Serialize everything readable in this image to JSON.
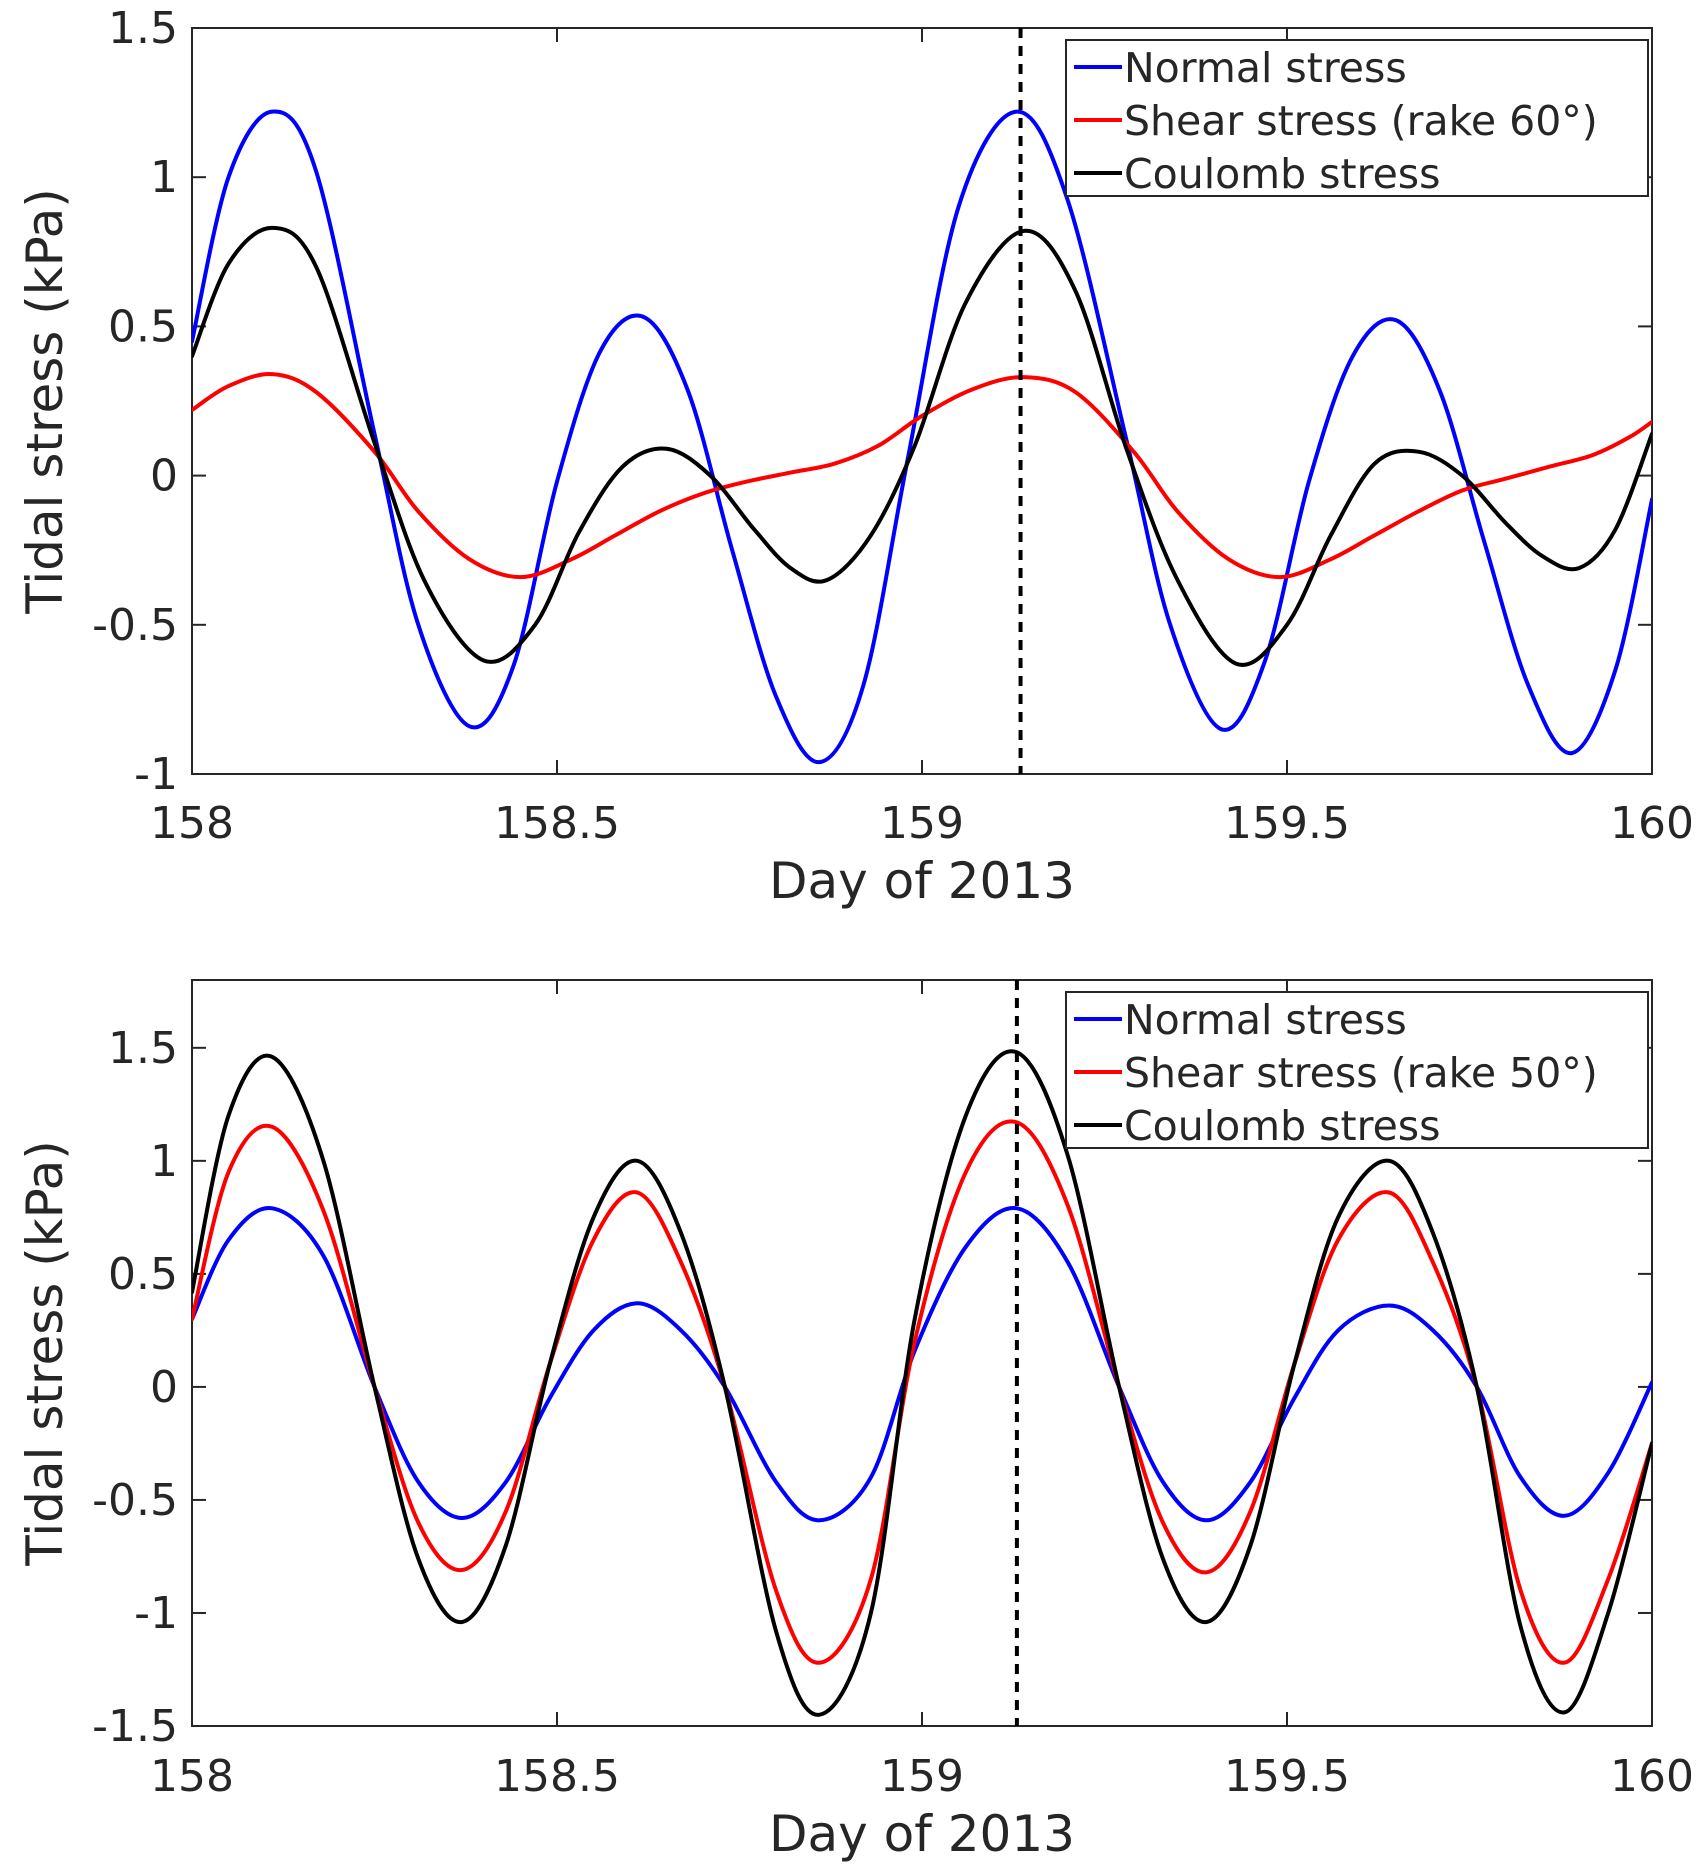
{
  "chart_data": [
    {
      "type": "line",
      "title": "",
      "xlabel": "Day of 2013",
      "ylabel": "Tidal stress (kPa)",
      "xlim": [
        158,
        160
      ],
      "ylim": [
        -1,
        1.5
      ],
      "xticks": [
        158,
        158.5,
        159,
        159.5,
        160
      ],
      "xtick_labels": [
        "158",
        "158.5",
        "159",
        "159.5",
        "160"
      ],
      "yticks": [
        -1,
        -0.5,
        0,
        0.5,
        1,
        1.5
      ],
      "ytick_labels": [
        "-1",
        "-0.5",
        "0",
        "0.5",
        "1",
        "1.5"
      ],
      "grid": false,
      "legend_position": "top-right",
      "vline": 159.135,
      "series": [
        {
          "name": "Normal stress",
          "color": "#0000ff",
          "x": [
            158.0,
            158.05,
            158.11,
            158.17,
            158.25,
            158.31,
            158.38,
            158.44,
            158.5,
            158.56,
            158.62,
            158.68,
            158.74,
            158.8,
            158.86,
            158.92,
            158.98,
            159.05,
            159.13,
            159.2,
            159.28,
            159.34,
            159.41,
            159.47,
            159.53,
            159.59,
            159.65,
            159.71,
            159.77,
            159.83,
            159.89,
            159.95,
            160.0
          ],
          "y": [
            0.45,
            1.0,
            1.22,
            1.02,
            0.14,
            -0.5,
            -0.84,
            -0.64,
            -0.02,
            0.42,
            0.53,
            0.28,
            -0.25,
            -0.74,
            -0.96,
            -0.7,
            0.05,
            0.9,
            1.22,
            0.92,
            0.12,
            -0.5,
            -0.85,
            -0.62,
            -0.02,
            0.4,
            0.52,
            0.28,
            -0.22,
            -0.7,
            -0.93,
            -0.65,
            -0.08
          ]
        },
        {
          "name": "Shear stress (rake 60°)",
          "color": "#ff0000",
          "x": [
            158.0,
            158.05,
            158.11,
            158.17,
            158.25,
            158.31,
            158.38,
            158.45,
            158.52,
            158.58,
            158.64,
            158.7,
            158.76,
            158.82,
            158.88,
            158.94,
            159.0,
            159.07,
            159.14,
            159.21,
            159.29,
            159.35,
            159.42,
            159.49,
            159.56,
            159.62,
            159.68,
            159.74,
            159.8,
            159.86,
            159.92,
            159.97,
            160.0
          ],
          "y": [
            0.22,
            0.3,
            0.34,
            0.28,
            0.08,
            -0.12,
            -0.28,
            -0.34,
            -0.28,
            -0.2,
            -0.12,
            -0.06,
            -0.02,
            0.01,
            0.04,
            0.1,
            0.2,
            0.29,
            0.33,
            0.28,
            0.08,
            -0.12,
            -0.28,
            -0.34,
            -0.28,
            -0.2,
            -0.12,
            -0.05,
            -0.01,
            0.03,
            0.07,
            0.13,
            0.18
          ]
        },
        {
          "name": "Coulomb stress",
          "color": "#000000",
          "x": [
            158.0,
            158.05,
            158.11,
            158.17,
            158.25,
            158.32,
            158.4,
            158.47,
            158.53,
            158.59,
            158.65,
            158.71,
            158.77,
            158.82,
            158.87,
            158.93,
            158.99,
            159.06,
            159.14,
            159.21,
            159.28,
            159.35,
            159.43,
            159.5,
            159.56,
            159.62,
            159.68,
            159.74,
            159.8,
            159.85,
            159.9,
            159.95,
            160.0
          ],
          "y": [
            0.4,
            0.71,
            0.83,
            0.7,
            0.11,
            -0.36,
            -0.62,
            -0.5,
            -0.19,
            0.03,
            0.09,
            0.0,
            -0.18,
            -0.31,
            -0.35,
            -0.2,
            0.1,
            0.58,
            0.82,
            0.62,
            0.09,
            -0.35,
            -0.63,
            -0.5,
            -0.2,
            0.04,
            0.08,
            0.0,
            -0.16,
            -0.27,
            -0.31,
            -0.18,
            0.14
          ]
        }
      ]
    },
    {
      "type": "line",
      "title": "",
      "xlabel": "Day of 2013",
      "ylabel": "Tidal stress (kPa)",
      "xlim": [
        158,
        160
      ],
      "ylim": [
        -1.5,
        1.8
      ],
      "xticks": [
        158,
        158.5,
        159,
        159.5,
        160
      ],
      "xtick_labels": [
        "158",
        "158.5",
        "159",
        "159.5",
        "160"
      ],
      "yticks": [
        -1.5,
        -1,
        -0.5,
        0,
        0.5,
        1,
        1.5
      ],
      "ytick_labels": [
        "-1.5",
        "-1",
        "-0.5",
        "0",
        "0.5",
        "1",
        "1.5"
      ],
      "grid": false,
      "legend_position": "top-right",
      "vline": 159.13,
      "series": [
        {
          "name": "Normal stress",
          "color": "#0000ff",
          "x": [
            158.0,
            158.05,
            158.11,
            158.18,
            158.25,
            158.31,
            158.37,
            158.43,
            158.49,
            158.55,
            158.61,
            158.67,
            158.73,
            158.8,
            158.86,
            158.93,
            158.99,
            159.06,
            159.13,
            159.2,
            159.27,
            159.33,
            159.39,
            159.45,
            159.51,
            159.57,
            159.64,
            159.7,
            159.76,
            159.82,
            159.88,
            159.94,
            160.0
          ],
          "y": [
            0.3,
            0.65,
            0.79,
            0.58,
            0.0,
            -0.42,
            -0.58,
            -0.42,
            -0.05,
            0.25,
            0.37,
            0.25,
            0.0,
            -0.42,
            -0.59,
            -0.4,
            0.16,
            0.62,
            0.79,
            0.55,
            0.0,
            -0.42,
            -0.59,
            -0.42,
            -0.05,
            0.25,
            0.36,
            0.25,
            0.0,
            -0.4,
            -0.57,
            -0.38,
            0.02
          ]
        },
        {
          "name": "Shear stress (rake 50°)",
          "color": "#ff0000",
          "x": [
            158.0,
            158.05,
            158.11,
            158.18,
            158.25,
            158.31,
            158.37,
            158.43,
            158.49,
            158.55,
            158.61,
            158.67,
            158.73,
            158.8,
            158.86,
            158.93,
            158.99,
            159.06,
            159.13,
            159.2,
            159.27,
            159.33,
            159.39,
            159.45,
            159.51,
            159.57,
            159.64,
            159.7,
            159.76,
            159.82,
            159.88,
            159.94,
            160.0
          ],
          "y": [
            0.3,
            0.95,
            1.15,
            0.78,
            0.0,
            -0.6,
            -0.81,
            -0.55,
            0.1,
            0.65,
            0.86,
            0.55,
            0.0,
            -0.9,
            -1.22,
            -0.85,
            0.2,
            0.95,
            1.17,
            0.8,
            0.0,
            -0.6,
            -0.82,
            -0.55,
            0.1,
            0.65,
            0.86,
            0.55,
            0.0,
            -0.9,
            -1.22,
            -0.85,
            -0.25
          ]
        },
        {
          "name": "Coulomb stress",
          "color": "#000000",
          "x": [
            158.0,
            158.05,
            158.11,
            158.18,
            158.25,
            158.31,
            158.37,
            158.43,
            158.49,
            158.55,
            158.61,
            158.67,
            158.73,
            158.8,
            158.86,
            158.93,
            158.99,
            159.06,
            159.13,
            159.2,
            159.27,
            159.33,
            159.39,
            159.45,
            159.51,
            159.57,
            159.64,
            159.7,
            159.76,
            159.82,
            159.88,
            159.94,
            160.0
          ],
          "y": [
            0.42,
            1.2,
            1.46,
            1.0,
            0.0,
            -0.76,
            -1.04,
            -0.7,
            0.1,
            0.75,
            1.0,
            0.68,
            0.0,
            -1.08,
            -1.45,
            -1.0,
            0.3,
            1.2,
            1.48,
            1.02,
            0.0,
            -0.76,
            -1.04,
            -0.7,
            0.1,
            0.75,
            1.0,
            0.68,
            0.0,
            -1.06,
            -1.44,
            -1.0,
            -0.25
          ]
        }
      ]
    }
  ]
}
